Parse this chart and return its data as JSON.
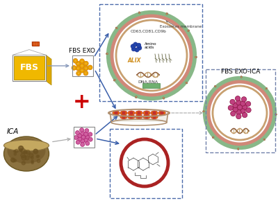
{
  "bg_color": "#ffffff",
  "fbs_box_color": "#F0B800",
  "fbs_label": "FBS",
  "fbs_exo_label": "FBS EXO",
  "ica_label": "ICA",
  "fbs_exo_ica_label": "FBS EXO-ICA",
  "arrow_color": "#3A5FAA",
  "dashed_box_color": "#4A6AAA",
  "plus_color": "#CC0000",
  "cell_dish_orange": "#F07800",
  "cell_dish_red": "#C03030",
  "membrane_green": "#88B888",
  "membrane_salmon": "#D08878",
  "membrane_tan": "#C8A070",
  "ica_cluster_color": "#D060A0",
  "fbs_exo_balls_color": "#F0A800",
  "mol_circle_color": "#AA2222",
  "box_outline": "#888888",
  "gray_arrow": "#AAAAAA"
}
